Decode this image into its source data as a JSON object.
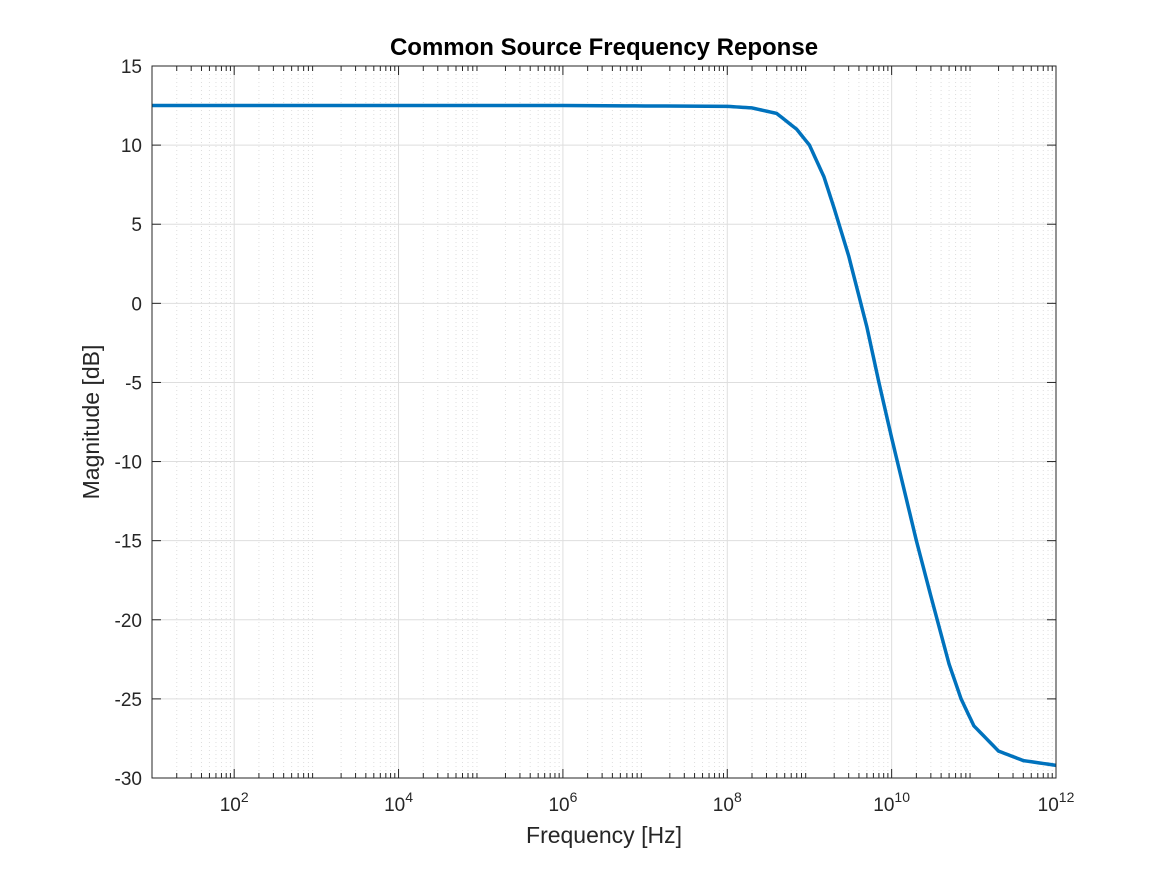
{
  "chart_data": {
    "type": "line",
    "title": "Common Source Frequency Reponse",
    "xlabel": "Frequency [Hz]",
    "ylabel": "Magnitude [dB]",
    "xscale": "log",
    "xlim": [
      10,
      1000000000000
    ],
    "ylim": [
      -30,
      15
    ],
    "grid": true,
    "minor_grid": true,
    "x_ticks": [
      {
        "base": "10",
        "exp": "2"
      },
      {
        "base": "10",
        "exp": "4"
      },
      {
        "base": "10",
        "exp": "6"
      },
      {
        "base": "10",
        "exp": "8"
      },
      {
        "base": "10",
        "exp": "10"
      },
      {
        "base": "10",
        "exp": "12"
      }
    ],
    "y_ticks": [
      "15",
      "10",
      "5",
      "0",
      "-5",
      "-10",
      "-15",
      "-20",
      "-25",
      "-30"
    ],
    "colors": {
      "line": "#0072BD",
      "grid": "#dedede",
      "axis": "#262626"
    },
    "series": [
      {
        "values": [
          [
            10,
            12.5
          ],
          [
            100,
            12.5
          ],
          [
            10000,
            12.5
          ],
          [
            1000000,
            12.5
          ],
          [
            100000000,
            12.45
          ],
          [
            200000000,
            12.35
          ],
          [
            400000000,
            12.0
          ],
          [
            700000000,
            11.0
          ],
          [
            1000000000,
            10.0
          ],
          [
            1500000000,
            8.0
          ],
          [
            2000000000,
            6.0
          ],
          [
            3000000000,
            3.0
          ],
          [
            5000000000,
            -1.5
          ],
          [
            7000000000,
            -5.0
          ],
          [
            10000000000,
            -8.5
          ],
          [
            15000000000,
            -12.3
          ],
          [
            20000000000,
            -15.0
          ],
          [
            30000000000,
            -18.5
          ],
          [
            50000000000,
            -22.8
          ],
          [
            70000000000,
            -25.0
          ],
          [
            100000000000,
            -26.7
          ],
          [
            200000000000,
            -28.3
          ],
          [
            400000000000,
            -28.9
          ],
          [
            1000000000000,
            -29.2
          ]
        ]
      }
    ]
  }
}
